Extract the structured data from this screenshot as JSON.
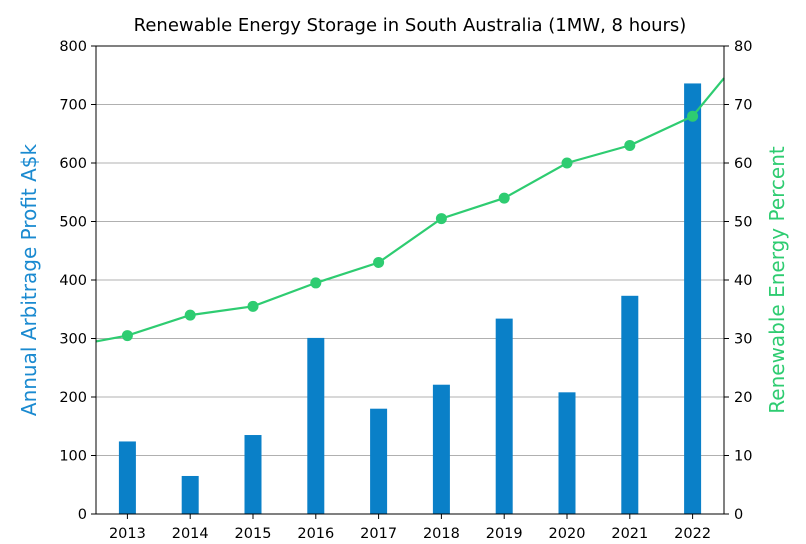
{
  "chart_data": {
    "title": "Renewable Energy Storage in South Australia (1MW, 8 hours)",
    "type": "bar+line",
    "categories": [
      "2013",
      "2014",
      "2015",
      "2016",
      "2017",
      "2018",
      "2019",
      "2020",
      "2021",
      "2022"
    ],
    "left_axis": {
      "label": "Annual Arbitrage Profit A$k",
      "range": [
        0,
        800
      ],
      "ticks": [
        "0",
        "100",
        "200",
        "300",
        "400",
        "500",
        "600",
        "700",
        "800"
      ],
      "color": "#1a8ad0"
    },
    "right_axis": {
      "label": "Renewable Energy Percent",
      "range": [
        0,
        80
      ],
      "ticks": [
        "0",
        "10",
        "20",
        "30",
        "40",
        "50",
        "60",
        "70",
        "80"
      ],
      "color": "#2ecc71"
    },
    "series": [
      {
        "name": "Annual Arbitrage Profit A$k",
        "type": "bar",
        "axis": "left",
        "color": "#0a80c8",
        "values": [
          124,
          65,
          135,
          301,
          180,
          221,
          334,
          208,
          373,
          736
        ]
      },
      {
        "name": "Renewable Energy Percent",
        "type": "line",
        "axis": "right",
        "color": "#2ecc71",
        "values": [
          30.5,
          34,
          35.5,
          39.5,
          43,
          50.5,
          54,
          60,
          63,
          68
        ],
        "line_start": 29.5,
        "line_end": 74.5
      }
    ],
    "grid": "horizontal"
  }
}
